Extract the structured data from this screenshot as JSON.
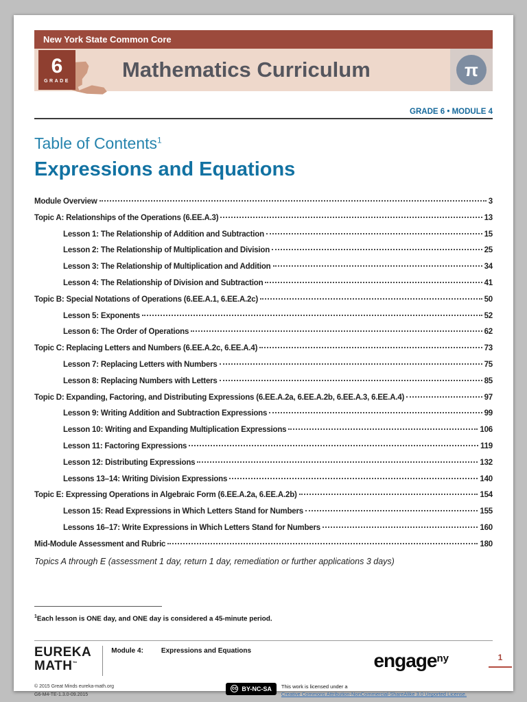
{
  "colors": {
    "banner_maroon": "#9c4a3c",
    "banner_band": "#eed8cb",
    "badge_maroon": "#8f3f30",
    "pi_circle_blue": "#7e8da1",
    "heading_blue": "#2583ad",
    "title_blue": "#1272a2",
    "module_label_blue": "#16699b",
    "page_number_red": "#a8453a"
  },
  "header": {
    "top_bar": "New York State Common Core",
    "grade_number": "6",
    "grade_label": "GRADE",
    "title": "Mathematics Curriculum",
    "pi_symbol": "π"
  },
  "module_label": "GRADE 6 • MODULE 4",
  "toc": {
    "heading": "Table of Contents",
    "heading_sup": "1",
    "title": "Expressions and Equations",
    "items": [
      {
        "label": "Module Overview",
        "page": "3",
        "level": 0
      },
      {
        "label": "Topic A:  Relationships of the Operations (6.EE.A.3)",
        "page": "13",
        "level": 0
      },
      {
        "label": "Lesson 1:  The Relationship of Addition and Subtraction",
        "page": "15",
        "level": 1
      },
      {
        "label": "Lesson 2:  The Relationship of Multiplication and Division",
        "page": "25",
        "level": 1
      },
      {
        "label": "Lesson 3:  The Relationship of Multiplication and Addition",
        "page": "34",
        "level": 1
      },
      {
        "label": "Lesson 4:  The Relationship of Division and Subtraction",
        "page": "41",
        "level": 1
      },
      {
        "label": "Topic B:  Special Notations of Operations (6.EE.A.1, 6.EE.A.2c)",
        "page": "50",
        "level": 0
      },
      {
        "label": "Lesson 5:  Exponents",
        "page": "52",
        "level": 1
      },
      {
        "label": "Lesson 6:  The Order of Operations",
        "page": "62",
        "level": 1
      },
      {
        "label": "Topic C:  Replacing Letters and Numbers (6.EE.A.2c, 6.EE.A.4)",
        "page": "73",
        "level": 0
      },
      {
        "label": "Lesson 7:  Replacing Letters with Numbers",
        "page": "75",
        "level": 1
      },
      {
        "label": "Lesson 8:  Replacing Numbers with Letters",
        "page": "85",
        "level": 1
      },
      {
        "label": "Topic D:  Expanding, Factoring, and Distributing Expressions (6.EE.A.2a, 6.EE.A.2b, 6.EE.A.3, 6.EE.A.4)",
        "page": "97",
        "level": 0
      },
      {
        "label": "Lesson 9:  Writing Addition and Subtraction Expressions",
        "page": "99",
        "level": 1
      },
      {
        "label": "Lesson 10:  Writing and Expanding Multiplication Expressions",
        "page": "106",
        "level": 1
      },
      {
        "label": "Lesson 11:  Factoring Expressions",
        "page": "119",
        "level": 1
      },
      {
        "label": "Lesson 12:  Distributing Expressions",
        "page": "132",
        "level": 1
      },
      {
        "label": "Lessons 13–14:  Writing Division Expressions",
        "page": "140",
        "level": 1
      },
      {
        "label": "Topic E:  Expressing Operations in Algebraic Form (6.EE.A.2a, 6.EE.A.2b)",
        "page": "154",
        "level": 0
      },
      {
        "label": "Lesson 15:  Read Expressions in Which Letters Stand for Numbers",
        "page": "155",
        "level": 1
      },
      {
        "label": "Lessons 16–17:  Write Expressions in Which Letters Stand for Numbers",
        "page": "160",
        "level": 1
      },
      {
        "label": "Mid-Module Assessment and Rubric",
        "page": "180",
        "level": 0
      }
    ],
    "note": "Topics A through E (assessment 1 day, return 1 day, remediation or further applications 3 days)"
  },
  "footnote": {
    "sup": "1",
    "text": "Each lesson is ONE day, and ONE day is considered a 45-minute period."
  },
  "footer": {
    "eureka_line1": "EUREKA",
    "eureka_line2": "MATH",
    "eureka_tm": "™",
    "module_label": "Module 4:",
    "module_title": "Expressions and Equations",
    "engage": "engage",
    "engage_sup": "ny",
    "page_number": "1",
    "copyright_line1": "© 2015 Great Minds eureka-math.org",
    "copyright_line2": "G6-M4-TE-1.3.0-09.2015",
    "cc_symbol": "cc",
    "cc_label": "BY-NC-SA",
    "license_intro": "This work is licensed under a",
    "license_link": "Creative Commons Attribution-NonCommercial-ShareAlike 3.0 Unported License."
  }
}
